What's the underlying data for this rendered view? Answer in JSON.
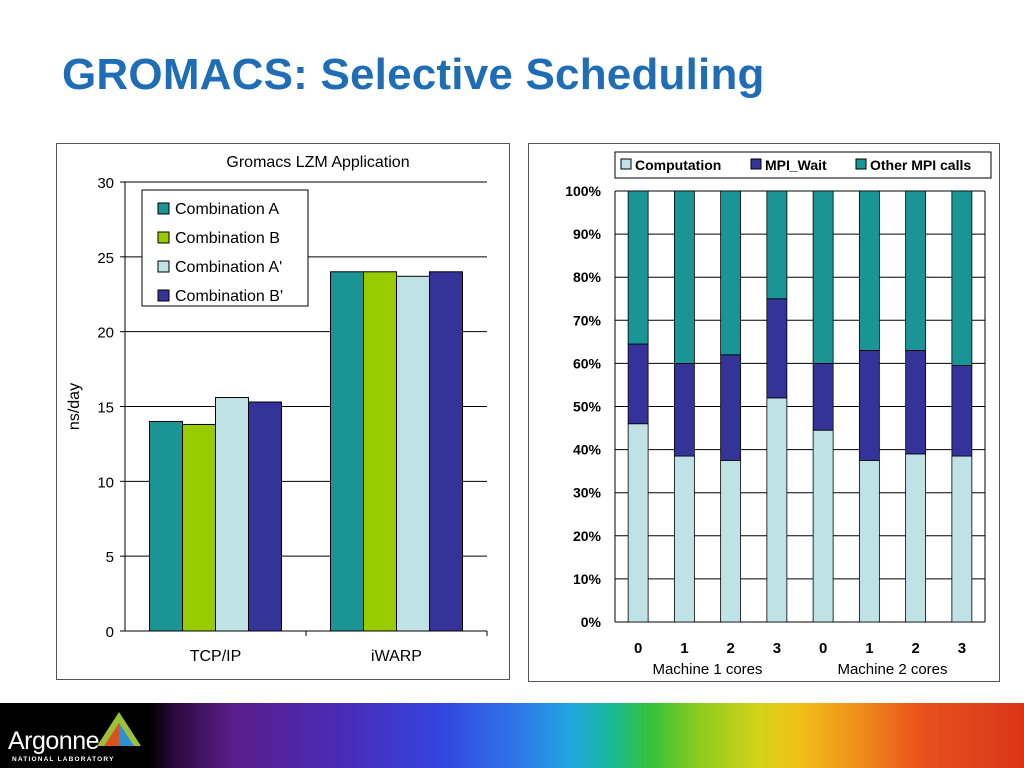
{
  "slide": {
    "title": "GROMACS: Selective Scheduling"
  },
  "chart_data": [
    {
      "type": "bar",
      "title": "Gromacs LZM Application",
      "xlabel": "",
      "ylabel": "ns/day",
      "ylim": [
        0,
        30
      ],
      "yticks": [
        "0",
        "5",
        "10",
        "15",
        "20",
        "25",
        "30"
      ],
      "categories": [
        "TCP/IP",
        "iWARP"
      ],
      "legend_position": "top-left",
      "series": [
        {
          "name": "Combination A",
          "color": "#1a9494",
          "values": [
            14.0,
            24.0
          ]
        },
        {
          "name": "Combination B",
          "color": "#99cc00",
          "values": [
            13.8,
            24.0
          ]
        },
        {
          "name": "Combination A'",
          "color": "#bfe2e6",
          "values": [
            15.6,
            23.7
          ]
        },
        {
          "name": "Combination B'",
          "color": "#333399",
          "values": [
            15.3,
            24.0
          ]
        }
      ]
    },
    {
      "type": "bar",
      "stacked": true,
      "title": "",
      "ylim": [
        0,
        100
      ],
      "yticks": [
        "0%",
        "10%",
        "20%",
        "30%",
        "40%",
        "50%",
        "60%",
        "70%",
        "80%",
        "90%",
        "100%"
      ],
      "categories": [
        "0",
        "1",
        "2",
        "3",
        "0",
        "1",
        "2",
        "3"
      ],
      "groups": [
        "Machine 1 cores",
        "Machine 2 cores"
      ],
      "legend_position": "top",
      "series": [
        {
          "name": "Computation",
          "color": "#bfe2e6",
          "values": [
            46,
            38.5,
            37.5,
            52,
            44.5,
            37.5,
            39,
            38.5
          ]
        },
        {
          "name": "MPI_Wait",
          "color": "#333399",
          "values": [
            18.5,
            21.5,
            24.5,
            23,
            15.5,
            25.5,
            24,
            21
          ]
        },
        {
          "name": "Other MPI calls",
          "color": "#1a9494",
          "values": [
            35.5,
            40,
            38,
            25,
            40,
            37,
            37,
            40.5
          ]
        }
      ]
    }
  ],
  "footer": {
    "logo_word": "Argonne",
    "logo_sub": "NATIONAL LABORATORY",
    "logo_colors": [
      "#9bc03a",
      "#2d8fd5",
      "#d9531e"
    ]
  }
}
